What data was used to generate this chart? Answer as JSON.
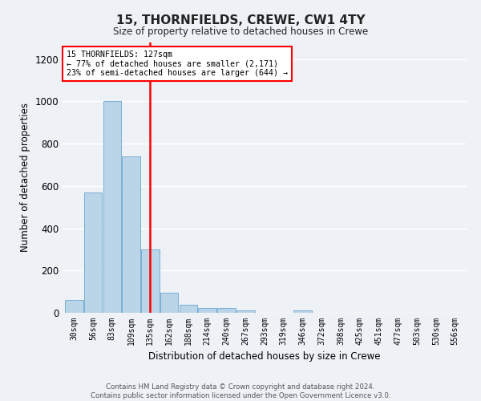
{
  "title": "15, THORNFIELDS, CREWE, CW1 4TY",
  "subtitle": "Size of property relative to detached houses in Crewe",
  "xlabel": "Distribution of detached houses by size in Crewe",
  "ylabel": "Number of detached properties",
  "bar_color": "#bad4e8",
  "bar_edge_color": "#7aafd4",
  "bin_labels": [
    "30sqm",
    "56sqm",
    "83sqm",
    "109sqm",
    "135sqm",
    "162sqm",
    "188sqm",
    "214sqm",
    "240sqm",
    "267sqm",
    "293sqm",
    "319sqm",
    "346sqm",
    "372sqm",
    "398sqm",
    "425sqm",
    "451sqm",
    "477sqm",
    "503sqm",
    "530sqm",
    "556sqm"
  ],
  "bar_values": [
    60,
    570,
    1000,
    740,
    300,
    95,
    38,
    22,
    22,
    12,
    0,
    0,
    12,
    0,
    0,
    0,
    0,
    0,
    0,
    0,
    0
  ],
  "red_line_x": 3.97,
  "annotation_text": "15 THORNFIELDS: 127sqm\n← 77% of detached houses are smaller (2,171)\n23% of semi-detached houses are larger (644) →",
  "ylim": [
    0,
    1280
  ],
  "yticks": [
    0,
    200,
    400,
    600,
    800,
    1000,
    1200
  ],
  "background_color": "#eef2f7",
  "grid_color": "#ffffff",
  "footer_line1": "Contains HM Land Registry data © Crown copyright and database right 2024.",
  "footer_line2": "Contains public sector information licensed under the Open Government Licence v3.0."
}
